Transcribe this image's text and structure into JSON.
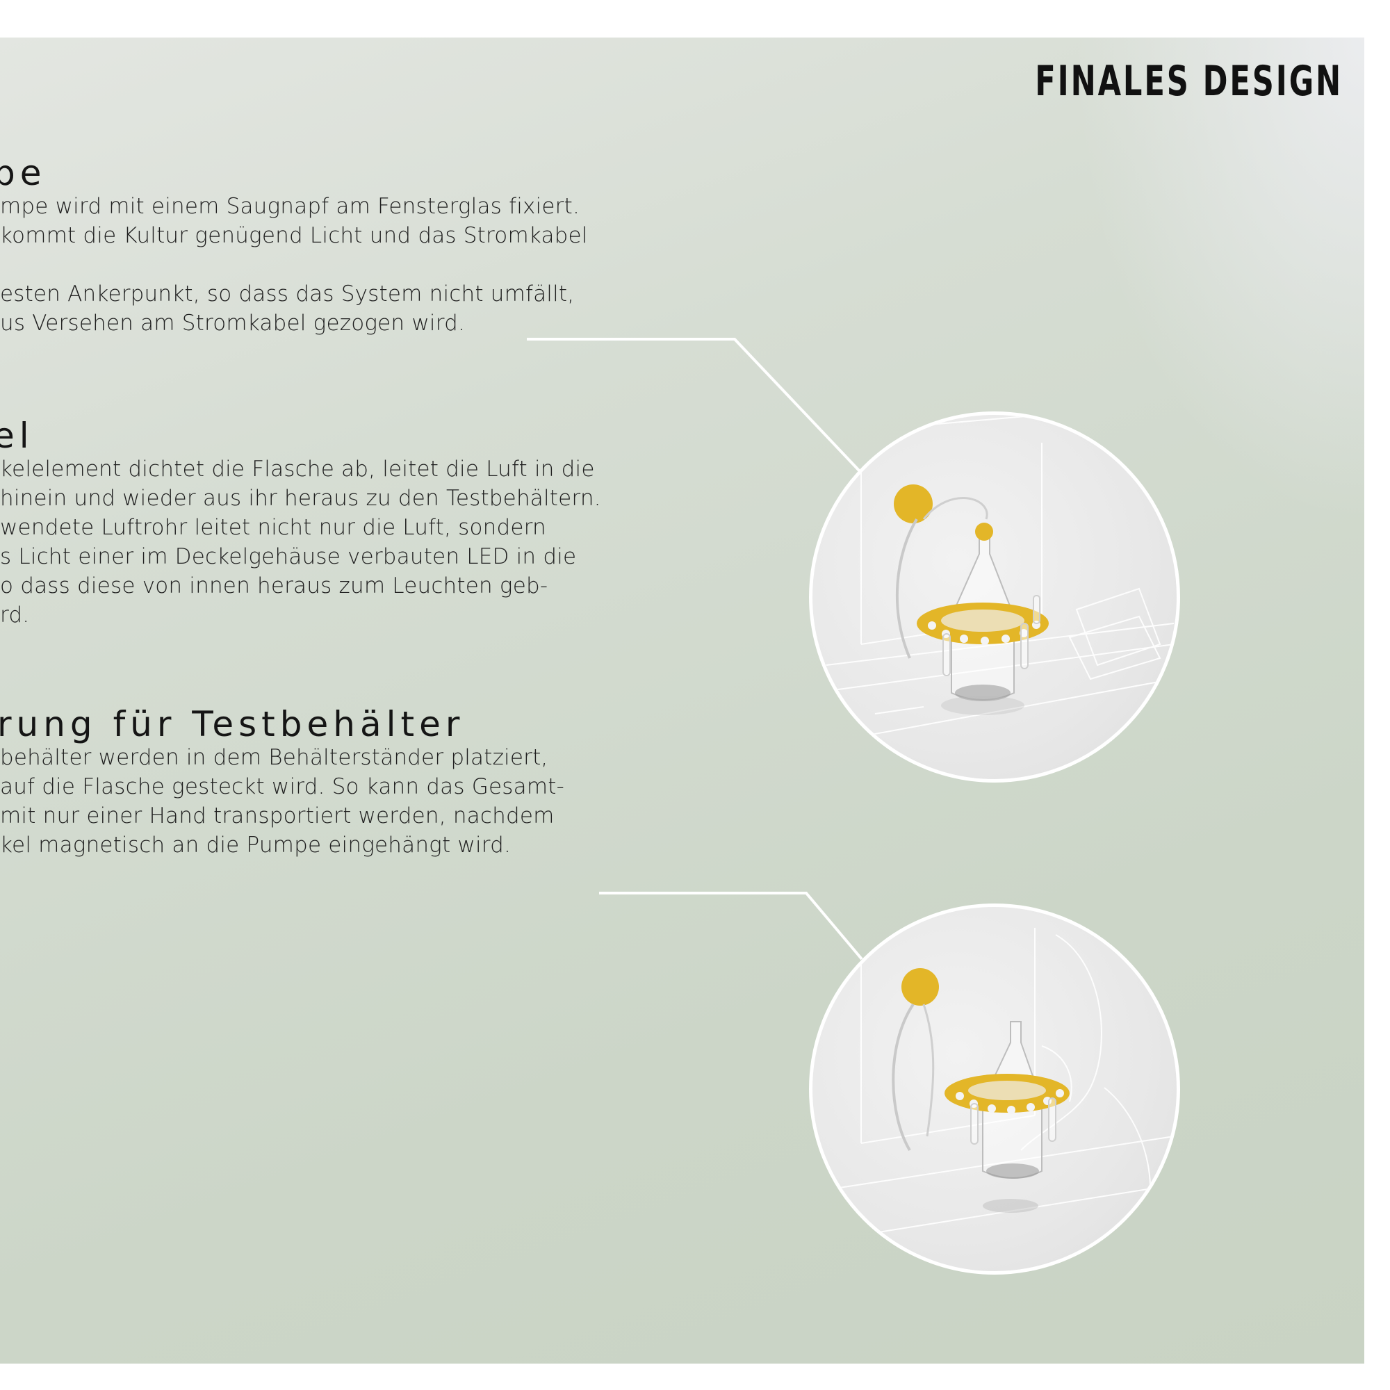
{
  "page": {
    "title": "FINALES DESIGN"
  },
  "sections": [
    {
      "heading": "pe",
      "lines": [
        "mpe wird mit einem Saugnapf am Fensterglas fixiert.",
        "kommt die Kultur genügend Licht und das Stromkabel",
        "",
        "esten Ankerpunkt, so dass das System nicht umfällt,",
        "us Versehen am Stromkabel gezogen wird."
      ]
    },
    {
      "heading": "el",
      "lines": [
        "kelelement dichtet die Flasche ab, leitet die Luft in die",
        "hinein und  wieder aus ihr heraus zu den Testbehältern.",
        "wendete Luftrohr leitet nicht nur die Luft, sondern",
        "s Licht einer im Deckelgehäuse verbauten LED in die",
        "o dass diese von innen heraus zum Leuchten geb-",
        "rd."
      ]
    },
    {
      "heading": "rung für Testbehälter",
      "lines": [
        "behälter werden in dem Behälterständer platziert,",
        "auf die Flasche gesteckt wird. So kann das Gesamt-",
        "mit nur einer Hand transportiert werden, nachdem",
        "kel magnetisch an die Pumpe eingehängt wird."
      ]
    }
  ],
  "colors": {
    "accent_yellow": "#e3b628",
    "connector_line": "#ffffff",
    "background_green": "#cfd8cb"
  },
  "images": [
    {
      "name": "pump-bottle-assembly-render"
    },
    {
      "name": "carrying-assembly-render"
    }
  ]
}
